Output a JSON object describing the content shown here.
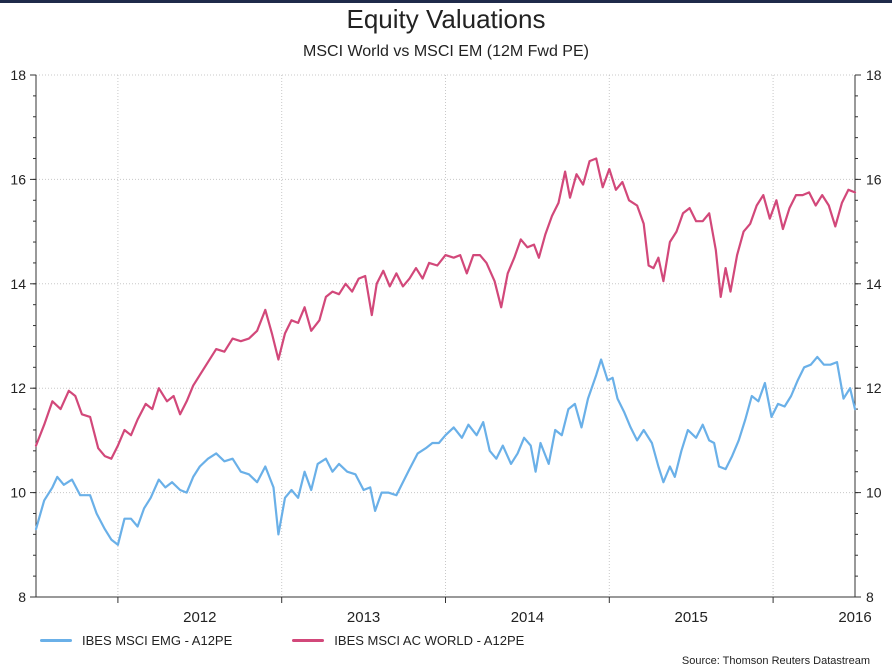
{
  "chart_data": {
    "type": "line",
    "title": "Equity Valuations",
    "subtitle": "MSCI World vs MSCI EM (12M Fwd PE)",
    "source": "Source: Thomson Reuters Datastream",
    "ylim": [
      8,
      18
    ],
    "y_ticks": [
      8,
      10,
      12,
      14,
      16,
      18
    ],
    "y_tick_labels": [
      "8",
      "10",
      "12",
      "14",
      "16",
      "18"
    ],
    "xlim": [
      2011.5,
      2016.5
    ],
    "year_boundaries": [
      2012,
      2013,
      2014,
      2015,
      2016
    ],
    "x_tick_labels": [
      {
        "label": "2012",
        "at": 2012.0
      },
      {
        "label": "2013",
        "at": 2013.0
      },
      {
        "label": "2014",
        "at": 2014.0
      },
      {
        "label": "2015",
        "at": 2015.0
      },
      {
        "label": "2016",
        "at": 2016.0
      }
    ],
    "grid": true,
    "legend_position": "bottom-left",
    "series": [
      {
        "name": "IBES MSCI EMG - A12PE",
        "color": "#6ab0e8",
        "points": [
          [
            2011.5,
            9.3
          ],
          [
            2011.55,
            9.85
          ],
          [
            2011.6,
            10.1
          ],
          [
            2011.63,
            10.3
          ],
          [
            2011.67,
            10.15
          ],
          [
            2011.72,
            10.25
          ],
          [
            2011.77,
            9.95
          ],
          [
            2011.83,
            9.95
          ],
          [
            2011.87,
            9.6
          ],
          [
            2011.92,
            9.3
          ],
          [
            2011.96,
            9.1
          ],
          [
            2012.0,
            9.0
          ],
          [
            2012.04,
            9.5
          ],
          [
            2012.08,
            9.5
          ],
          [
            2012.12,
            9.35
          ],
          [
            2012.16,
            9.7
          ],
          [
            2012.2,
            9.9
          ],
          [
            2012.25,
            10.25
          ],
          [
            2012.29,
            10.1
          ],
          [
            2012.33,
            10.2
          ],
          [
            2012.38,
            10.05
          ],
          [
            2012.42,
            10.0
          ],
          [
            2012.46,
            10.3
          ],
          [
            2012.5,
            10.5
          ],
          [
            2012.55,
            10.65
          ],
          [
            2012.6,
            10.75
          ],
          [
            2012.65,
            10.6
          ],
          [
            2012.7,
            10.65
          ],
          [
            2012.75,
            10.4
          ],
          [
            2012.8,
            10.35
          ],
          [
            2012.85,
            10.2
          ],
          [
            2012.9,
            10.5
          ],
          [
            2012.95,
            10.1
          ],
          [
            2012.98,
            9.2
          ],
          [
            2013.02,
            9.9
          ],
          [
            2013.06,
            10.05
          ],
          [
            2013.1,
            9.9
          ],
          [
            2013.14,
            10.4
          ],
          [
            2013.18,
            10.05
          ],
          [
            2013.22,
            10.55
          ],
          [
            2013.27,
            10.65
          ],
          [
            2013.31,
            10.4
          ],
          [
            2013.35,
            10.55
          ],
          [
            2013.4,
            10.4
          ],
          [
            2013.45,
            10.35
          ],
          [
            2013.5,
            10.05
          ],
          [
            2013.54,
            10.1
          ],
          [
            2013.57,
            9.65
          ],
          [
            2013.61,
            10.0
          ],
          [
            2013.65,
            10.0
          ],
          [
            2013.7,
            9.95
          ],
          [
            2013.74,
            10.2
          ],
          [
            2013.78,
            10.45
          ],
          [
            2013.83,
            10.75
          ],
          [
            2013.88,
            10.85
          ],
          [
            2013.92,
            10.95
          ],
          [
            2013.96,
            10.95
          ],
          [
            2014.0,
            11.1
          ],
          [
            2014.05,
            11.25
          ],
          [
            2014.1,
            11.05
          ],
          [
            2014.14,
            11.3
          ],
          [
            2014.19,
            11.1
          ],
          [
            2014.23,
            11.35
          ],
          [
            2014.27,
            10.8
          ],
          [
            2014.31,
            10.65
          ],
          [
            2014.35,
            10.9
          ],
          [
            2014.4,
            10.55
          ],
          [
            2014.44,
            10.75
          ],
          [
            2014.48,
            11.05
          ],
          [
            2014.52,
            10.9
          ],
          [
            2014.55,
            10.4
          ],
          [
            2014.58,
            10.95
          ],
          [
            2014.63,
            10.55
          ],
          [
            2014.67,
            11.2
          ],
          [
            2014.71,
            11.1
          ],
          [
            2014.75,
            11.6
          ],
          [
            2014.79,
            11.7
          ],
          [
            2014.83,
            11.25
          ],
          [
            2014.87,
            11.8
          ],
          [
            2014.92,
            12.25
          ],
          [
            2014.95,
            12.55
          ],
          [
            2014.99,
            12.15
          ],
          [
            2015.02,
            12.2
          ],
          [
            2015.05,
            11.8
          ],
          [
            2015.09,
            11.55
          ],
          [
            2015.13,
            11.25
          ],
          [
            2015.17,
            11.0
          ],
          [
            2015.21,
            11.2
          ],
          [
            2015.26,
            10.95
          ],
          [
            2015.3,
            10.5
          ],
          [
            2015.33,
            10.2
          ],
          [
            2015.37,
            10.5
          ],
          [
            2015.4,
            10.3
          ],
          [
            2015.44,
            10.8
          ],
          [
            2015.48,
            11.2
          ],
          [
            2015.53,
            11.05
          ],
          [
            2015.57,
            11.3
          ],
          [
            2015.61,
            11.0
          ],
          [
            2015.64,
            10.95
          ],
          [
            2015.67,
            10.5
          ],
          [
            2015.71,
            10.45
          ],
          [
            2015.75,
            10.7
          ],
          [
            2015.79,
            11.0
          ],
          [
            2015.83,
            11.4
          ],
          [
            2015.87,
            11.85
          ],
          [
            2015.91,
            11.75
          ],
          [
            2015.95,
            12.1
          ],
          [
            2015.99,
            11.45
          ],
          [
            2016.03,
            11.7
          ],
          [
            2016.07,
            11.65
          ],
          [
            2016.11,
            11.85
          ],
          [
            2016.15,
            12.15
          ],
          [
            2016.19,
            12.4
          ],
          [
            2016.23,
            12.45
          ],
          [
            2016.27,
            12.6
          ],
          [
            2016.31,
            12.45
          ],
          [
            2016.35,
            12.45
          ],
          [
            2016.39,
            12.5
          ],
          [
            2016.43,
            11.8
          ],
          [
            2016.47,
            12.0
          ],
          [
            2016.5,
            11.6
          ]
        ]
      },
      {
        "name": "IBES MSCI AC WORLD - A12PE",
        "color": "#d2487a",
        "points": [
          [
            2011.5,
            10.9
          ],
          [
            2011.55,
            11.3
          ],
          [
            2011.6,
            11.75
          ],
          [
            2011.65,
            11.6
          ],
          [
            2011.7,
            11.95
          ],
          [
            2011.74,
            11.85
          ],
          [
            2011.78,
            11.5
          ],
          [
            2011.83,
            11.45
          ],
          [
            2011.88,
            10.85
          ],
          [
            2011.92,
            10.7
          ],
          [
            2011.96,
            10.65
          ],
          [
            2012.0,
            10.9
          ],
          [
            2012.04,
            11.2
          ],
          [
            2012.08,
            11.1
          ],
          [
            2012.12,
            11.4
          ],
          [
            2012.17,
            11.7
          ],
          [
            2012.21,
            11.6
          ],
          [
            2012.25,
            12.0
          ],
          [
            2012.3,
            11.75
          ],
          [
            2012.34,
            11.85
          ],
          [
            2012.38,
            11.5
          ],
          [
            2012.42,
            11.75
          ],
          [
            2012.46,
            12.05
          ],
          [
            2012.5,
            12.25
          ],
          [
            2012.55,
            12.5
          ],
          [
            2012.6,
            12.75
          ],
          [
            2012.65,
            12.7
          ],
          [
            2012.7,
            12.95
          ],
          [
            2012.75,
            12.9
          ],
          [
            2012.8,
            12.95
          ],
          [
            2012.85,
            13.1
          ],
          [
            2012.9,
            13.5
          ],
          [
            2012.94,
            13.05
          ],
          [
            2012.98,
            12.55
          ],
          [
            2013.02,
            13.05
          ],
          [
            2013.06,
            13.3
          ],
          [
            2013.1,
            13.25
          ],
          [
            2013.14,
            13.55
          ],
          [
            2013.18,
            13.1
          ],
          [
            2013.23,
            13.3
          ],
          [
            2013.27,
            13.75
          ],
          [
            2013.31,
            13.85
          ],
          [
            2013.35,
            13.8
          ],
          [
            2013.39,
            14.0
          ],
          [
            2013.43,
            13.85
          ],
          [
            2013.47,
            14.1
          ],
          [
            2013.51,
            14.15
          ],
          [
            2013.55,
            13.4
          ],
          [
            2013.58,
            14.0
          ],
          [
            2013.62,
            14.25
          ],
          [
            2013.66,
            13.95
          ],
          [
            2013.7,
            14.2
          ],
          [
            2013.74,
            13.95
          ],
          [
            2013.78,
            14.1
          ],
          [
            2013.82,
            14.3
          ],
          [
            2013.86,
            14.1
          ],
          [
            2013.9,
            14.4
          ],
          [
            2013.95,
            14.35
          ],
          [
            2014.0,
            14.55
          ],
          [
            2014.05,
            14.5
          ],
          [
            2014.09,
            14.55
          ],
          [
            2014.13,
            14.2
          ],
          [
            2014.17,
            14.55
          ],
          [
            2014.21,
            14.55
          ],
          [
            2014.25,
            14.4
          ],
          [
            2014.3,
            14.05
          ],
          [
            2014.34,
            13.55
          ],
          [
            2014.38,
            14.2
          ],
          [
            2014.42,
            14.5
          ],
          [
            2014.46,
            14.85
          ],
          [
            2014.5,
            14.7
          ],
          [
            2014.54,
            14.75
          ],
          [
            2014.57,
            14.5
          ],
          [
            2014.61,
            14.95
          ],
          [
            2014.65,
            15.3
          ],
          [
            2014.69,
            15.55
          ],
          [
            2014.73,
            16.15
          ],
          [
            2014.76,
            15.65
          ],
          [
            2014.8,
            16.1
          ],
          [
            2014.84,
            15.9
          ],
          [
            2014.88,
            16.35
          ],
          [
            2014.92,
            16.4
          ],
          [
            2014.96,
            15.85
          ],
          [
            2015.0,
            16.2
          ],
          [
            2015.04,
            15.8
          ],
          [
            2015.08,
            15.95
          ],
          [
            2015.12,
            15.6
          ],
          [
            2015.17,
            15.5
          ],
          [
            2015.21,
            15.15
          ],
          [
            2015.24,
            14.35
          ],
          [
            2015.27,
            14.3
          ],
          [
            2015.3,
            14.5
          ],
          [
            2015.33,
            14.05
          ],
          [
            2015.37,
            14.8
          ],
          [
            2015.41,
            15.0
          ],
          [
            2015.45,
            15.35
          ],
          [
            2015.49,
            15.45
          ],
          [
            2015.53,
            15.2
          ],
          [
            2015.57,
            15.2
          ],
          [
            2015.61,
            15.35
          ],
          [
            2015.65,
            14.65
          ],
          [
            2015.68,
            13.75
          ],
          [
            2015.71,
            14.3
          ],
          [
            2015.74,
            13.85
          ],
          [
            2015.78,
            14.55
          ],
          [
            2015.82,
            15.0
          ],
          [
            2015.86,
            15.15
          ],
          [
            2015.9,
            15.5
          ],
          [
            2015.94,
            15.7
          ],
          [
            2015.98,
            15.25
          ],
          [
            2016.02,
            15.6
          ],
          [
            2016.06,
            15.05
          ],
          [
            2016.1,
            15.45
          ],
          [
            2016.14,
            15.7
          ],
          [
            2016.18,
            15.7
          ],
          [
            2016.22,
            15.75
          ],
          [
            2016.26,
            15.5
          ],
          [
            2016.3,
            15.7
          ],
          [
            2016.34,
            15.5
          ],
          [
            2016.38,
            15.1
          ],
          [
            2016.42,
            15.55
          ],
          [
            2016.46,
            15.8
          ],
          [
            2016.5,
            15.75
          ]
        ]
      }
    ]
  }
}
